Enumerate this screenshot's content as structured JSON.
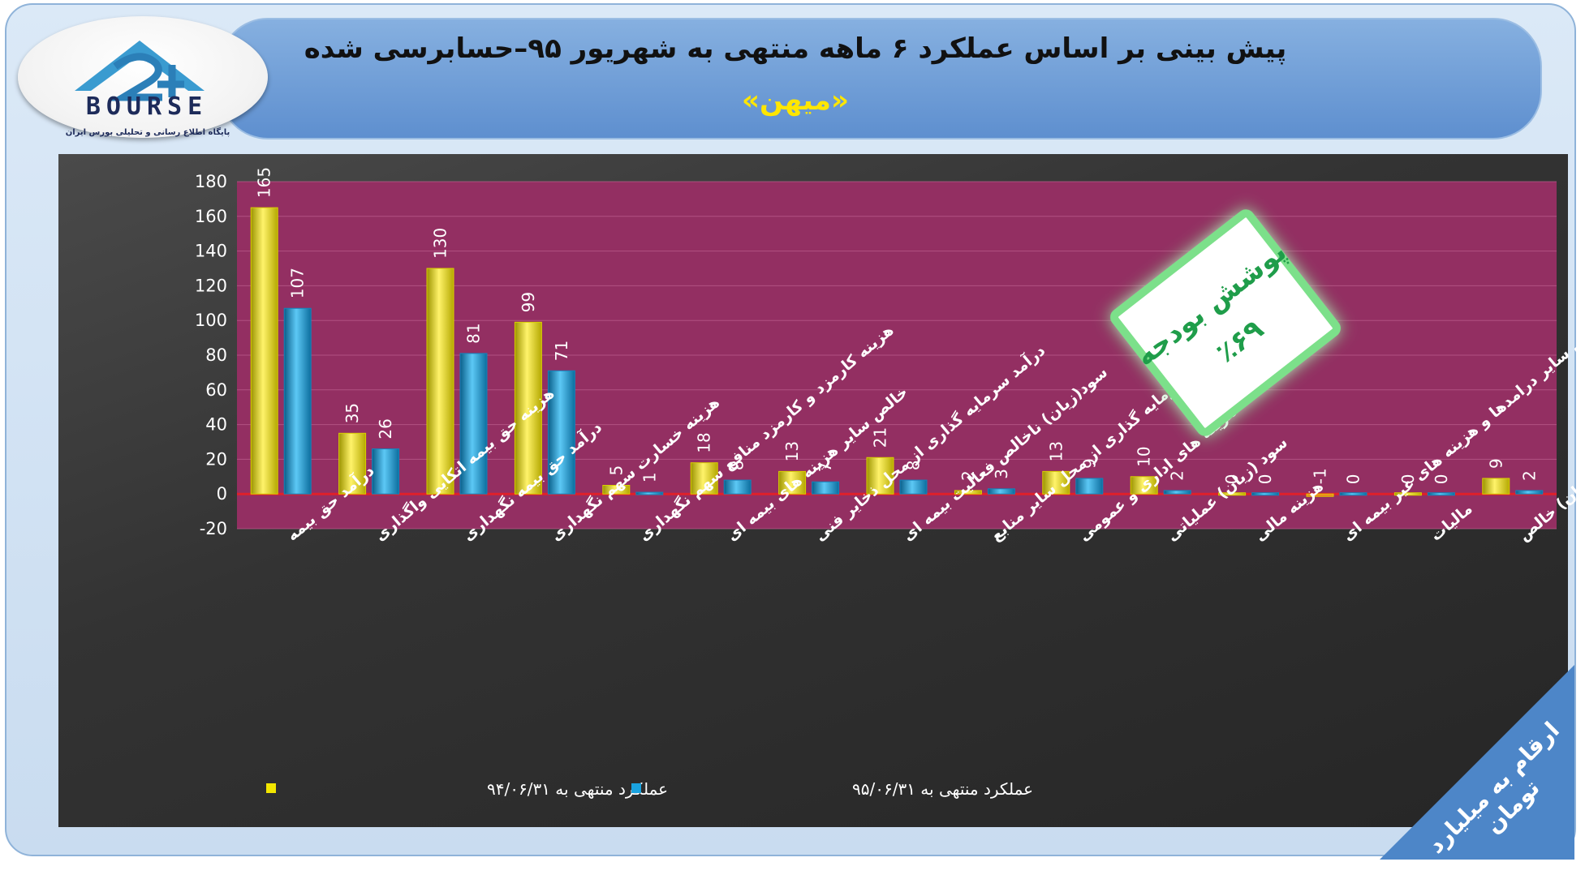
{
  "header": {
    "title": "پیش بینی بر اساس عملکرد ۶ ماهه منتهی به شهریور ۹۵–حسابرسی شده",
    "subtitle": "«میهن»"
  },
  "logo": {
    "text": "BOURSE",
    "tagline": "پایگاه اطلاع رسانی و تحلیلی بورس ایران"
  },
  "badge": {
    "line1": "پوشش بودجه",
    "line2": "٪۶۹"
  },
  "corner_note": "ارقام به میلیارد تومان",
  "colors": {
    "series1": "#f2e600",
    "series2": "#1aa3e0",
    "plot_bg": "#932f62",
    "zero_line": "#e0202a",
    "badge_text": "#1f9d4a"
  },
  "chart_data": {
    "type": "bar",
    "title": "",
    "xlabel": "",
    "ylabel": "",
    "ylim": [
      -20,
      180
    ],
    "yticks": [
      -20,
      0,
      20,
      40,
      60,
      80,
      100,
      120,
      140,
      160,
      180
    ],
    "grid": true,
    "legend_position": "bottom",
    "categories": [
      "درآمد حق بیمه",
      "هزینه حق بیمه اتکایی واگذاری",
      "درآمد حق بیمه نگهداری",
      "هزینه خسارت سهم نگهداری",
      "هزینه کارمزد و کارمزد منافع سهم نگهداری",
      "خالص سایر هزینه های بیمه ای",
      "درآمد سرمایه گذاری از محل ذخایر فنی",
      "سود(زیان) ناخالص فعالیت بیمه ای",
      "درامد سرمایه گذاری از محل سایر منابع",
      "هزینه های اداری و عمومی",
      "سود (زیان) عملیاتی",
      "هزینه مالی",
      "خالص سایر درامدها و هزینه های غیر بیمه ای",
      "مالیات",
      "سود (زیان) خالص"
    ],
    "series": [
      {
        "name": "عملکرد منتهی به ۹۴/۰۶/۳۱",
        "values": [
          165,
          35,
          130,
          99,
          5,
          18,
          13,
          21,
          2,
          13,
          10,
          0,
          -1,
          0,
          9
        ]
      },
      {
        "name": "عملکرد منتهی به ۹۵/۰۶/۳۱",
        "values": [
          107,
          26,
          81,
          71,
          1,
          8,
          7,
          8,
          3,
          9,
          2,
          0,
          0,
          0,
          2
        ]
      }
    ]
  }
}
